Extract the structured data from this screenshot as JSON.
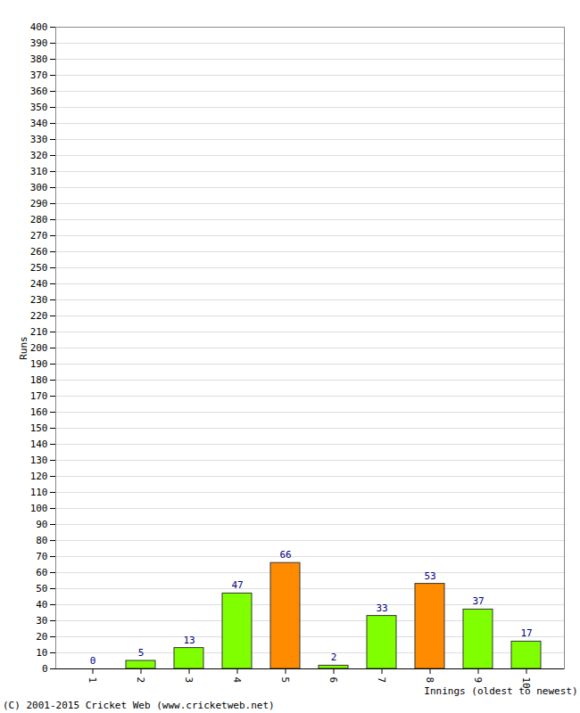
{
  "chart_data": {
    "type": "bar",
    "categories": [
      "1",
      "2",
      "3",
      "4",
      "5",
      "6",
      "7",
      "8",
      "9",
      "10"
    ],
    "values": [
      0,
      5,
      13,
      47,
      66,
      2,
      33,
      53,
      37,
      17
    ],
    "colors": [
      "#80ff00",
      "#80ff00",
      "#80ff00",
      "#80ff00",
      "#ff8c00",
      "#80ff00",
      "#80ff00",
      "#ff8c00",
      "#80ff00",
      "#80ff00"
    ],
    "x_label": "Innings (oldest to newest)",
    "y_label": "Runs",
    "caption": "(C) 2001-2015 Cricket Web (www.cricketweb.net)",
    "ylim": [
      0,
      400
    ],
    "yticks": [
      0,
      10,
      20,
      30,
      40,
      50,
      60,
      70,
      80,
      90,
      100,
      110,
      120,
      130,
      140,
      150,
      160,
      170,
      180,
      190,
      200,
      210,
      220,
      230,
      240,
      250,
      260,
      270,
      280,
      290,
      300,
      310,
      320,
      330,
      340,
      350,
      360,
      370,
      380,
      390,
      400
    ],
    "grid": true,
    "data_labels": true
  }
}
